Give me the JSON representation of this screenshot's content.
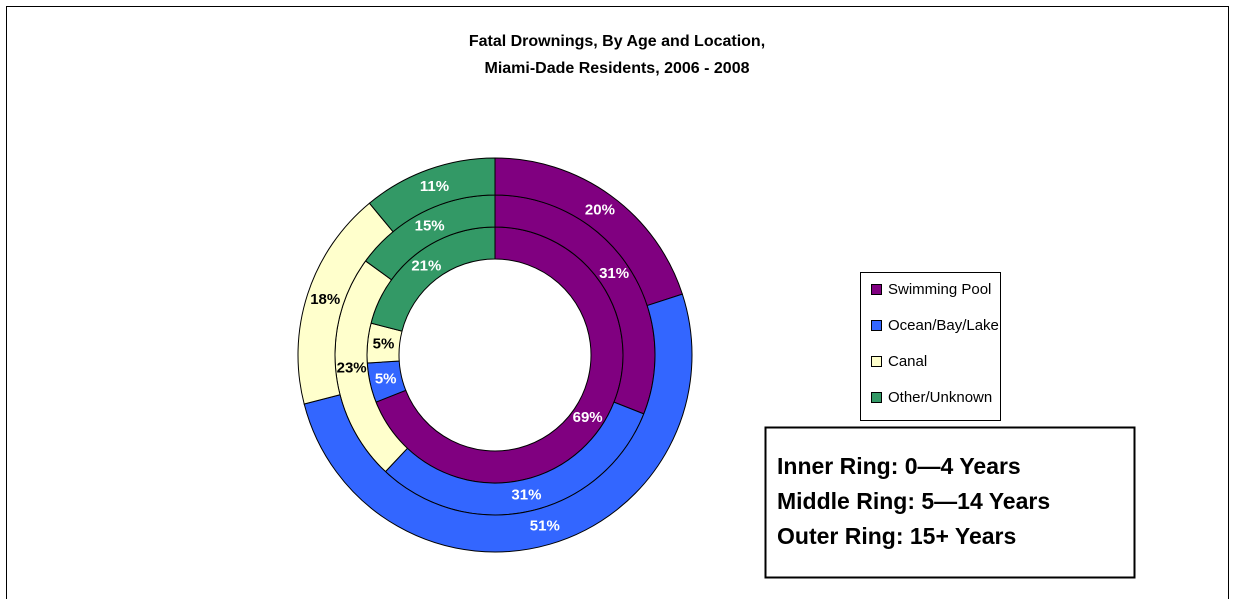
{
  "chart_data": {
    "type": "donut",
    "title": [
      "Fatal Drownings, By Age and Location,",
      "Miami-Dade Residents, 2006 - 2008"
    ],
    "categories": [
      "Swimming Pool",
      "Ocean/Bay/Lake",
      "Canal",
      "Other/Unknown"
    ],
    "colors": [
      "#800080",
      "#3366ff",
      "#ffffcc",
      "#339966"
    ],
    "series": [
      {
        "name": "Inner Ring: 0—4 Years",
        "values": [
          69,
          5,
          5,
          21
        ],
        "value_labels": [
          "69%",
          "5%",
          "5%",
          "21%"
        ]
      },
      {
        "name": "Middle Ring: 5—14 Years",
        "values": [
          31,
          31,
          23,
          15
        ],
        "value_labels": [
          "31%",
          "31%",
          "23%",
          "15%"
        ]
      },
      {
        "name": "Outer Ring: 15+ Years",
        "values": [
          20,
          51,
          18,
          11
        ],
        "value_labels": [
          "20%",
          "51%",
          "18%",
          "11%"
        ]
      }
    ],
    "legend": "right"
  }
}
